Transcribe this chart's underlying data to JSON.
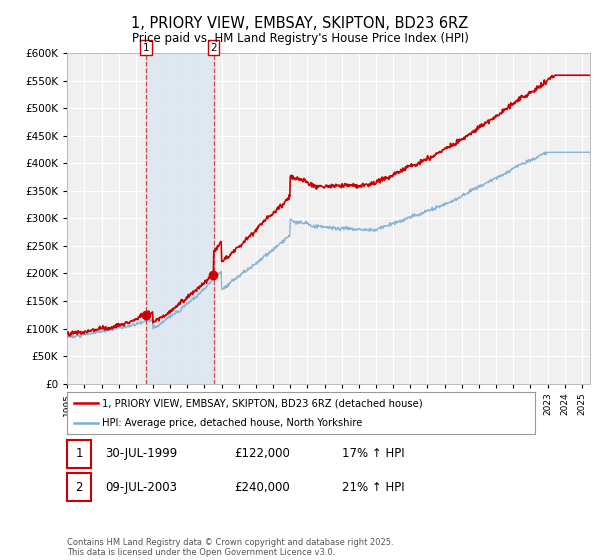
{
  "title": "1, PRIORY VIEW, EMBSAY, SKIPTON, BD23 6RZ",
  "subtitle": "Price paid vs. HM Land Registry's House Price Index (HPI)",
  "ylim": [
    0,
    600000
  ],
  "xlim_start": 1995.0,
  "xlim_end": 2025.5,
  "t1_x": 1999.58,
  "t1_price": 122000,
  "t1_date": "30-JUL-1999",
  "t1_hpi": "17% ↑ HPI",
  "t2_x": 2003.53,
  "t2_price": 240000,
  "t2_date": "09-JUL-2003",
  "t2_hpi": "21% ↑ HPI",
  "legend_line1": "1, PRIORY VIEW, EMBSAY, SKIPTON, BD23 6RZ (detached house)",
  "legend_line2": "HPI: Average price, detached house, North Yorkshire",
  "footer": "Contains HM Land Registry data © Crown copyright and database right 2025.\nThis data is licensed under the Open Government Licence v3.0.",
  "line_color_red": "#cc0000",
  "line_color_blue": "#7bafd4",
  "bg_color": "#ffffff",
  "plot_bg_color": "#f0f0f0",
  "grid_color": "#ffffff",
  "highlight_color": "#dce6f1"
}
